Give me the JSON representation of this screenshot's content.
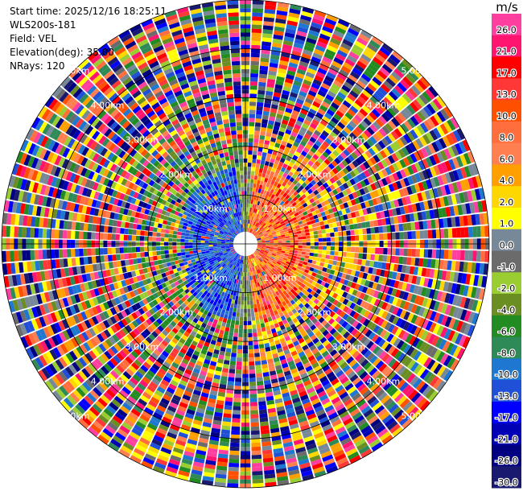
{
  "header": {
    "start_time": "Start time: 2025/12/16 18:25:11",
    "instrument": "WLS200s-181",
    "field": "Field: VEL",
    "elevation": "Elevation(deg): 35.00",
    "nrays": "NRays: 120"
  },
  "range_labels": [
    "1.00km",
    "2.00km",
    "3.00km",
    "4.00km",
    "5.00km"
  ],
  "colorbar": {
    "unit": "m/s",
    "ticks": [
      "26.0",
      "21.0",
      "17.0",
      "13.0",
      "10.0",
      "8.0",
      "6.0",
      "4.0",
      "2.0",
      "1.0",
      "0.0",
      "-1.0",
      "-2.0",
      "-4.0",
      "-6.0",
      "-8.0",
      "-10.0",
      "-13.0",
      "-17.0",
      "-21.0",
      "-26.0",
      "-30.0"
    ],
    "colors": [
      "#ff3f9f",
      "#ff1470",
      "#ff0000",
      "#ff3737",
      "#ff5000",
      "#ff6e3c",
      "#ff7f50",
      "#ffa000",
      "#ffd700",
      "#ffff00",
      "#778899",
      "#6b6b6b",
      "#9acd32",
      "#6b8e23",
      "#228b22",
      "#2e8b57",
      "#1e78d2",
      "#2050d8",
      "#0000ff",
      "#0000b4",
      "#000080",
      "#191970"
    ]
  },
  "chart_data": {
    "type": "heatmap",
    "title": "",
    "field": "VEL",
    "units": "m/s",
    "elevation_deg": 35.0,
    "nrays": 120,
    "max_range_km": 5.0,
    "range_rings_km": [
      1,
      2,
      3,
      4,
      5
    ],
    "color_levels": [
      -30,
      -26,
      -21,
      -17,
      -13,
      -10,
      -8,
      -6,
      -4,
      -2,
      -1,
      0,
      1,
      2,
      4,
      6,
      8,
      10,
      13,
      17,
      21,
      26
    ],
    "pattern": "near-range: negative (blue) west, positive (red/orange) east; far range: noisy all levels"
  }
}
